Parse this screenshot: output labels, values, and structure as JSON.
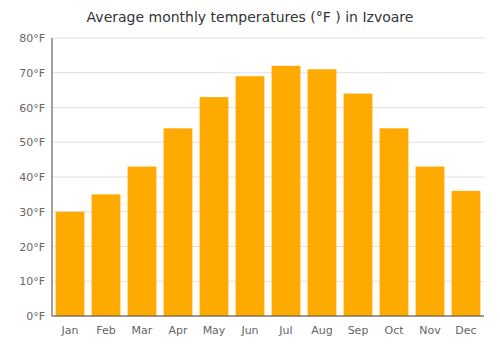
{
  "chart_data": {
    "type": "bar",
    "title": "Average monthly temperatures (°F ) in Izvoare",
    "categories": [
      "Jan",
      "Feb",
      "Mar",
      "Apr",
      "May",
      "Jun",
      "Jul",
      "Aug",
      "Sep",
      "Oct",
      "Nov",
      "Dec"
    ],
    "values": [
      30,
      35,
      43,
      54,
      63,
      69,
      72,
      71,
      64,
      54,
      43,
      36
    ],
    "color": "#FFAA00",
    "ylim": [
      0,
      80
    ],
    "yticks": [
      {
        "value": 0,
        "label": "0°F"
      },
      {
        "value": 10,
        "label": "10°F"
      },
      {
        "value": 20,
        "label": "20°F"
      },
      {
        "value": 30,
        "label": "30°F"
      },
      {
        "value": 40,
        "label": "40°F"
      },
      {
        "value": 50,
        "label": "50°F"
      },
      {
        "value": 60,
        "label": "60°F"
      },
      {
        "value": 70,
        "label": "70°F"
      },
      {
        "value": 80,
        "label": "80°F"
      }
    ],
    "grid": true
  }
}
